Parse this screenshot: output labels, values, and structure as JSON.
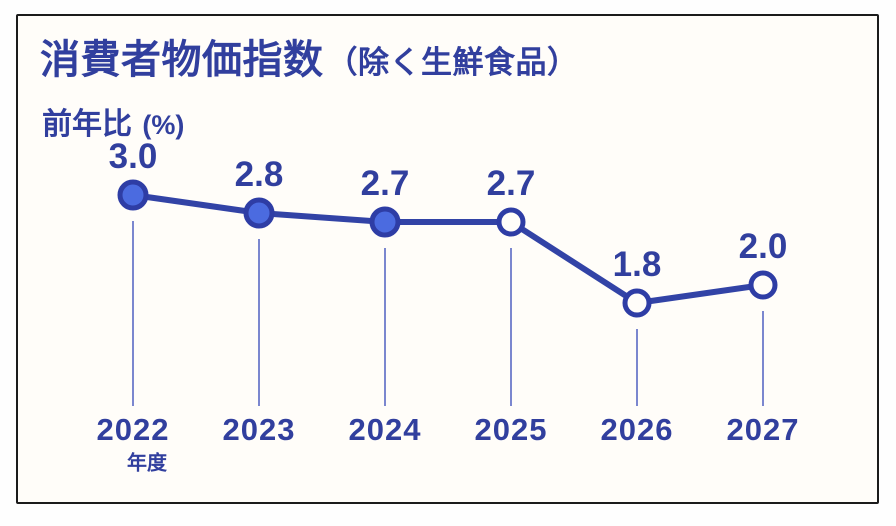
{
  "colors": {
    "text_blue": "#313f9e",
    "line_blue": "#3243a6",
    "dot_fill_actual": "#4b6be0",
    "dot_fill_forecast": "#fffdf9",
    "dot_stroke": "#2e3da5",
    "stem_blue": "#7b87cf",
    "card_border": "#1b1b1b",
    "card_bg": "#fffdf9"
  },
  "header": {
    "title_main": "消費者物価指数",
    "title_paren": "（除く生鮮食品）",
    "subtitle_main": "前年比",
    "subtitle_unit": "(%)"
  },
  "chart_data": {
    "type": "line",
    "title": "消費者物価指数（除く生鮮食品）",
    "ylabel": "前年比 (%)",
    "categories": [
      "2022",
      "2023",
      "2024",
      "2025",
      "2026",
      "2027"
    ],
    "values": [
      3.0,
      2.8,
      2.7,
      2.7,
      1.8,
      2.0
    ],
    "value_labels": [
      "3.0",
      "2.8",
      "2.7",
      "2.7",
      "1.8",
      "2.0"
    ],
    "point_styles": [
      "filled",
      "filled",
      "filled",
      "open",
      "open",
      "open"
    ],
    "x_axis_note": "年度",
    "x_axis_note_under": "2022",
    "grid": false,
    "legend": "none",
    "ylim": [
      1.5,
      3.2
    ]
  }
}
